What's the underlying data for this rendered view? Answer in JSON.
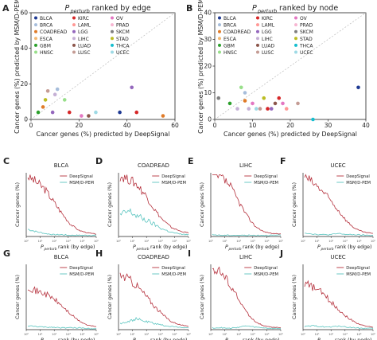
{
  "figure": {
    "colors": {
      "deepsignal": "#b5303c",
      "msm": "#5bc5c0",
      "diagonal": "#bbbbbb",
      "axis": "#222222"
    }
  },
  "chart_data": [
    {
      "panel": "A",
      "type": "scatter",
      "title_base": "P",
      "title_sub": "perturb",
      "title_rest": " ranked by edge",
      "xlabel": "Cancer genes (%) predicted by DeepSignal",
      "ylabel": "Cancer genes (%) predicted by MSM/D-PEM",
      "xlim": [
        0,
        60
      ],
      "ylim": [
        0,
        60
      ],
      "xticks": [
        "0",
        "20",
        "40",
        "60"
      ],
      "yticks": [
        "0",
        "20",
        "40",
        "60"
      ],
      "diagonal": true,
      "legend_position": "top-left",
      "legend": [
        {
          "label": "BLCA",
          "color": "#1f3a93"
        },
        {
          "label": "BRCA",
          "color": "#a6bddb"
        },
        {
          "label": "COADREAD",
          "color": "#e07b28"
        },
        {
          "label": "ESCA",
          "color": "#f5b971"
        },
        {
          "label": "GBM",
          "color": "#2ca02c"
        },
        {
          "label": "HNSC",
          "color": "#98df8a"
        },
        {
          "label": "KIRC",
          "color": "#d62728"
        },
        {
          "label": "LAML",
          "color": "#ff9896"
        },
        {
          "label": "LGG",
          "color": "#9467bd"
        },
        {
          "label": "LIHC",
          "color": "#c5b0d5"
        },
        {
          "label": "LUAD",
          "color": "#8c564b"
        },
        {
          "label": "LUSC",
          "color": "#c49c94"
        },
        {
          "label": "OV",
          "color": "#e377c2"
        },
        {
          "label": "PRAD",
          "color": "#f7b6d2"
        },
        {
          "label": "SKCM",
          "color": "#7f7f7f"
        },
        {
          "label": "STAD",
          "color": "#bcbd22"
        },
        {
          "label": "THCA",
          "color": "#17becf"
        },
        {
          "label": "UCEC",
          "color": "#9edae5"
        }
      ],
      "points": [
        {
          "x": 3,
          "y": 4,
          "color": "#2ca02c"
        },
        {
          "x": 5,
          "y": 7,
          "color": "#e07b28"
        },
        {
          "x": 6,
          "y": 11,
          "color": "#bcbd22"
        },
        {
          "x": 7,
          "y": 16,
          "color": "#c49c94"
        },
        {
          "x": 9,
          "y": 4,
          "color": "#9467bd"
        },
        {
          "x": 10,
          "y": 14,
          "color": "#c5b0d5"
        },
        {
          "x": 11,
          "y": 17,
          "color": "#a6bddb"
        },
        {
          "x": 14,
          "y": 11,
          "color": "#98df8a"
        },
        {
          "x": 16,
          "y": 4,
          "color": "#d62728"
        },
        {
          "x": 21,
          "y": 2,
          "color": "#e377c2"
        },
        {
          "x": 24,
          "y": 2,
          "color": "#8c564b"
        },
        {
          "x": 27,
          "y": 4,
          "color": "#9edae5"
        },
        {
          "x": 37,
          "y": 4,
          "color": "#1f3a93"
        },
        {
          "x": 42,
          "y": 18,
          "color": "#9467bd"
        },
        {
          "x": 44,
          "y": 4,
          "color": "#d62728"
        },
        {
          "x": 55,
          "y": 2,
          "color": "#e07b28"
        }
      ]
    },
    {
      "panel": "B",
      "type": "scatter",
      "title_base": "P",
      "title_sub": "perturb",
      "title_rest": " ranked by node",
      "xlabel": "Cancer genes (%) predicted by DeepSignal",
      "ylabel": "Cancer genes (%) predicted by MSM/D-PEM",
      "xlim": [
        0,
        40
      ],
      "ylim": [
        0,
        40
      ],
      "xticks": [
        "0",
        "10",
        "20",
        "30",
        "40"
      ],
      "yticks": [
        "0",
        "10",
        "20",
        "30",
        "40"
      ],
      "diagonal": true,
      "legend_position": "top-left",
      "points": [
        {
          "x": 1,
          "y": 8,
          "color": "#7f7f7f"
        },
        {
          "x": 4,
          "y": 6,
          "color": "#2ca02c"
        },
        {
          "x": 6,
          "y": 4,
          "color": "#c5b0d5"
        },
        {
          "x": 7,
          "y": 12,
          "color": "#98df8a"
        },
        {
          "x": 8,
          "y": 10,
          "color": "#a6bddb"
        },
        {
          "x": 8,
          "y": 7,
          "color": "#e07b28"
        },
        {
          "x": 9,
          "y": 4,
          "color": "#c5b0d5"
        },
        {
          "x": 10,
          "y": 6,
          "color": "#e377c2"
        },
        {
          "x": 11,
          "y": 4,
          "color": "#9edae5"
        },
        {
          "x": 12,
          "y": 4,
          "color": "#c49c94"
        },
        {
          "x": 13,
          "y": 8,
          "color": "#bcbd22"
        },
        {
          "x": 14,
          "y": 4,
          "color": "#d62728"
        },
        {
          "x": 15,
          "y": 4,
          "color": "#9467bd"
        },
        {
          "x": 16,
          "y": 6,
          "color": "#8c564b"
        },
        {
          "x": 17,
          "y": 8,
          "color": "#d62728"
        },
        {
          "x": 18,
          "y": 6,
          "color": "#e377c2"
        },
        {
          "x": 19,
          "y": 4,
          "color": "#ff9896"
        },
        {
          "x": 22,
          "y": 6,
          "color": "#c49c94"
        },
        {
          "x": 26,
          "y": 0,
          "color": "#17becf"
        },
        {
          "x": 38,
          "y": 12,
          "color": "#1f3a93"
        }
      ]
    },
    {
      "panel": "C",
      "type": "line",
      "title": "BLCA",
      "rank_by": "edge",
      "legend": true
    },
    {
      "panel": "D",
      "type": "line",
      "title": "COADREAD",
      "rank_by": "edge",
      "legend": true
    },
    {
      "panel": "E",
      "type": "line",
      "title": "LIHC",
      "rank_by": "edge",
      "legend": true
    },
    {
      "panel": "F",
      "type": "line",
      "title": "UCEC",
      "rank_by": "edge",
      "legend": true
    },
    {
      "panel": "G",
      "type": "line",
      "title": "BLCA",
      "rank_by": "node",
      "legend": true
    },
    {
      "panel": "H",
      "type": "line",
      "title": "COADREAD",
      "rank_by": "node",
      "legend": true
    },
    {
      "panel": "I",
      "type": "line",
      "title": "LIHC",
      "rank_by": "node",
      "legend": true
    },
    {
      "panel": "J",
      "type": "line",
      "title": "UCEC",
      "rank_by": "node",
      "legend": true
    }
  ],
  "line_panels": {
    "legend_labels": [
      "DeepSignal",
      "MSM/D-PEM"
    ],
    "ylabel": "Cancer genes (%)",
    "xlabel_edge": "rank (by edge)",
    "xlabel_node": "rank (by node)",
    "xlabel_symbol": "P",
    "xlabel_sub": "perturb",
    "xticks": [
      "10⁰",
      "10¹",
      "10²",
      "10³",
      "10⁴",
      "10⁵"
    ],
    "series_shape": {
      "C": {
        "ds": [
          1.0,
          0.9,
          0.78,
          0.58,
          0.38,
          0.2,
          0.1,
          0.06,
          0.04
        ],
        "msm": [
          0.12,
          0.08,
          0.05,
          0.03,
          0.03,
          0.02,
          0.02,
          0.02,
          0.02
        ]
      },
      "D": {
        "ds": [
          1.0,
          0.95,
          0.85,
          0.68,
          0.45,
          0.27,
          0.15,
          0.09,
          0.06
        ],
        "msm": [
          0.35,
          0.42,
          0.34,
          0.27,
          0.2,
          0.12,
          0.07,
          0.04,
          0.03
        ]
      },
      "E": {
        "ds": [
          1.0,
          0.98,
          0.85,
          0.6,
          0.35,
          0.17,
          0.08,
          0.05,
          0.04
        ],
        "msm": [
          0.03,
          0.02,
          0.02,
          0.02,
          0.02,
          0.02,
          0.02,
          0.02,
          0.02
        ]
      },
      "F": {
        "ds": [
          1.0,
          0.88,
          0.76,
          0.6,
          0.42,
          0.24,
          0.12,
          0.07,
          0.05
        ],
        "msm": [
          0.06,
          0.04,
          0.03,
          0.03,
          0.05,
          0.03,
          0.03,
          0.02,
          0.02
        ]
      },
      "G": {
        "ds": [
          0.7,
          0.62,
          0.58,
          0.5,
          0.38,
          0.25,
          0.14,
          0.07,
          0.05
        ],
        "msm": [
          0.06,
          0.05,
          0.04,
          0.04,
          0.03,
          0.03,
          0.03,
          0.02,
          0.02
        ]
      },
      "H": {
        "ds": [
          0.88,
          0.82,
          0.7,
          0.55,
          0.38,
          0.24,
          0.13,
          0.08,
          0.05
        ],
        "msm": [
          0.1,
          0.14,
          0.17,
          0.13,
          0.1,
          0.07,
          0.05,
          0.04,
          0.03
        ]
      },
      "I": {
        "ds": [
          1.0,
          0.92,
          0.75,
          0.5,
          0.28,
          0.13,
          0.06,
          0.04,
          0.03
        ],
        "msm": [
          0.03,
          0.03,
          0.02,
          0.04,
          0.06,
          0.04,
          0.03,
          0.02,
          0.02
        ]
      },
      "J": {
        "ds": [
          0.75,
          0.68,
          0.6,
          0.46,
          0.32,
          0.2,
          0.11,
          0.06,
          0.04
        ],
        "msm": [
          0.05,
          0.06,
          0.05,
          0.04,
          0.06,
          0.04,
          0.03,
          0.02,
          0.02
        ]
      }
    }
  }
}
